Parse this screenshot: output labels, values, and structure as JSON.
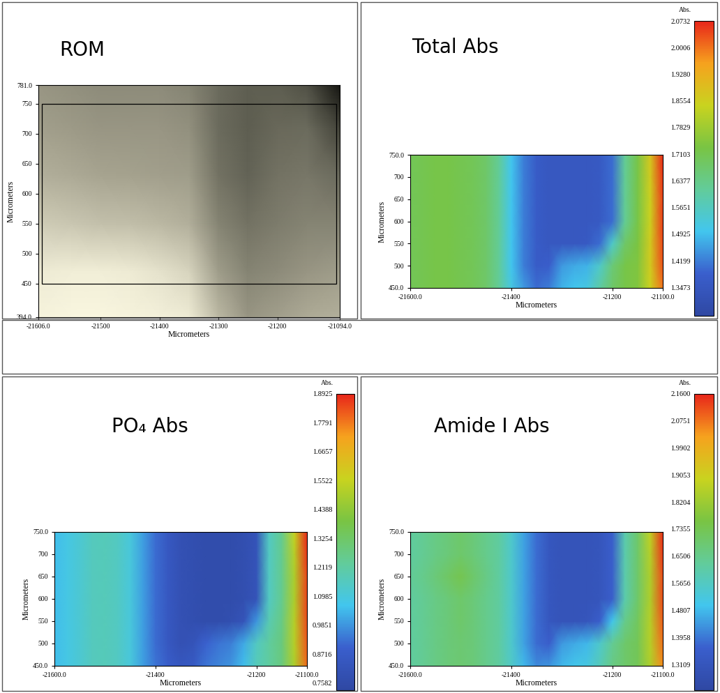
{
  "chart_data": [
    {
      "type": "image",
      "title": "ROM",
      "xlabel": "Micrometers",
      "ylabel": "Micrometers",
      "xlim": [
        -21606,
        -21094
      ],
      "ylim": [
        394,
        781
      ],
      "xticks": [
        {
          "value": -21606,
          "label": "-21606.0"
        },
        -21500,
        -21400,
        -21300,
        -21200,
        {
          "value": -21094,
          "label": "-21094.0"
        }
      ],
      "yticks": [
        {
          "value": 394,
          "label": "394.0"
        },
        450,
        500,
        550,
        600,
        650,
        700,
        750,
        {
          "value": 781,
          "label": "781.0"
        }
      ],
      "selection": {
        "x": [
          -21600,
          -21100
        ],
        "y": [
          450,
          750
        ]
      },
      "x": [
        -21606,
        -21550,
        -21500,
        -21450,
        -21400,
        -21350,
        -21300,
        -21250,
        -21200,
        -21150,
        -21094
      ],
      "y": [
        394,
        470,
        550,
        630,
        710,
        781
      ],
      "cells": [
        [
          0.96,
          0.97,
          0.97,
          0.96,
          0.95,
          0.93,
          0.75,
          0.62,
          0.66,
          0.7,
          0.72
        ],
        [
          0.93,
          0.94,
          0.94,
          0.93,
          0.9,
          0.85,
          0.65,
          0.55,
          0.58,
          0.62,
          0.65
        ],
        [
          0.82,
          0.8,
          0.78,
          0.77,
          0.75,
          0.72,
          0.55,
          0.48,
          0.52,
          0.55,
          0.55
        ],
        [
          0.72,
          0.7,
          0.68,
          0.67,
          0.66,
          0.65,
          0.48,
          0.42,
          0.48,
          0.5,
          0.45
        ],
        [
          0.66,
          0.64,
          0.62,
          0.62,
          0.62,
          0.6,
          0.45,
          0.4,
          0.44,
          0.45,
          0.3
        ],
        [
          0.62,
          0.6,
          0.58,
          0.58,
          0.58,
          0.55,
          0.45,
          0.4,
          0.4,
          0.35,
          0.12
        ]
      ]
    },
    {
      "type": "heatmap",
      "title": "Total Abs",
      "xlabel": "Micrometers",
      "ylabel": "Micrometers",
      "xlim": [
        -21600,
        -21100
      ],
      "ylim": [
        450,
        750
      ],
      "xticks": [
        {
          "value": -21600,
          "label": "-21600.0"
        },
        -21400,
        -21200,
        {
          "value": -21100,
          "label": "-21100.0"
        }
      ],
      "yticks": [
        {
          "value": 450,
          "label": "450.0"
        },
        500,
        550,
        600,
        650,
        700,
        {
          "value": 750,
          "label": "750.0"
        }
      ],
      "x": [
        -21600,
        -21575,
        -21550,
        -21525,
        -21500,
        -21475,
        -21450,
        -21425,
        -21400,
        -21375,
        -21350,
        -21325,
        -21300,
        -21275,
        -21250,
        -21225,
        -21200,
        -21175,
        -21150,
        -21125,
        -21100
      ],
      "y": [
        450,
        500,
        550,
        600,
        650,
        700,
        750
      ],
      "cells": [
        [
          1.7,
          1.71,
          1.72,
          1.72,
          1.71,
          1.7,
          1.68,
          1.62,
          1.52,
          1.45,
          1.4,
          1.42,
          1.48,
          1.5,
          1.52,
          1.6,
          1.68,
          1.72,
          1.74,
          1.85,
          2.0
        ],
        [
          1.7,
          1.71,
          1.72,
          1.72,
          1.71,
          1.7,
          1.68,
          1.62,
          1.5,
          1.42,
          1.37,
          1.38,
          1.45,
          1.47,
          1.48,
          1.55,
          1.66,
          1.72,
          1.74,
          1.86,
          2.03
        ],
        [
          1.7,
          1.71,
          1.72,
          1.72,
          1.71,
          1.7,
          1.68,
          1.62,
          1.5,
          1.42,
          1.37,
          1.35,
          1.35,
          1.35,
          1.36,
          1.4,
          1.55,
          1.68,
          1.73,
          1.86,
          2.04
        ],
        [
          1.7,
          1.71,
          1.72,
          1.72,
          1.71,
          1.7,
          1.68,
          1.62,
          1.5,
          1.42,
          1.37,
          1.35,
          1.35,
          1.35,
          1.35,
          1.36,
          1.4,
          1.62,
          1.72,
          1.85,
          2.05
        ],
        [
          1.7,
          1.71,
          1.72,
          1.72,
          1.71,
          1.7,
          1.68,
          1.62,
          1.5,
          1.42,
          1.37,
          1.35,
          1.35,
          1.35,
          1.35,
          1.36,
          1.4,
          1.62,
          1.72,
          1.85,
          2.05
        ],
        [
          1.7,
          1.71,
          1.72,
          1.72,
          1.71,
          1.7,
          1.68,
          1.62,
          1.5,
          1.42,
          1.37,
          1.35,
          1.35,
          1.35,
          1.35,
          1.36,
          1.4,
          1.62,
          1.72,
          1.86,
          2.06
        ],
        [
          1.7,
          1.71,
          1.72,
          1.72,
          1.71,
          1.7,
          1.68,
          1.62,
          1.5,
          1.42,
          1.37,
          1.35,
          1.35,
          1.35,
          1.35,
          1.36,
          1.4,
          1.62,
          1.72,
          1.87,
          2.07
        ]
      ],
      "colorbar": {
        "label": "Abs.",
        "range": [
          1.27,
          2.0732
        ],
        "ticks": [
          1.3473,
          1.4199,
          1.4925,
          1.5651,
          1.6377,
          1.7103,
          1.7829,
          1.8554,
          {
            "value": 1.928,
            "label": "1.9280"
          },
          2.0006,
          2.0732
        ]
      }
    },
    {
      "type": "heatmap",
      "title": "PO₄ Abs",
      "xlabel": "Micrometers",
      "ylabel": "Micrometers",
      "xlim": [
        -21600,
        -21100
      ],
      "ylim": [
        450,
        750
      ],
      "xticks": [
        {
          "value": -21600,
          "label": "-21600.0"
        },
        -21400,
        -21200,
        {
          "value": -21100,
          "label": "-21100.0"
        }
      ],
      "yticks": [
        {
          "value": 450,
          "label": "450.0"
        },
        500,
        550,
        600,
        650,
        700,
        {
          "value": 750,
          "label": "750.0"
        }
      ],
      "x": [
        -21600,
        -21575,
        -21550,
        -21525,
        -21500,
        -21475,
        -21450,
        -21425,
        -21400,
        -21375,
        -21350,
        -21325,
        -21300,
        -21275,
        -21250,
        -21225,
        -21200,
        -21175,
        -21150,
        -21125,
        -21100
      ],
      "y": [
        450,
        500,
        550,
        600,
        650,
        700,
        750
      ],
      "cells": [
        [
          1.05,
          1.08,
          1.12,
          1.16,
          1.17,
          1.15,
          1.1,
          1.0,
          0.93,
          0.88,
          0.84,
          0.86,
          0.93,
          0.96,
          0.98,
          1.05,
          1.17,
          1.22,
          1.28,
          1.5,
          1.8
        ],
        [
          1.05,
          1.08,
          1.12,
          1.16,
          1.17,
          1.15,
          1.1,
          1.0,
          0.92,
          0.85,
          0.8,
          0.82,
          0.9,
          0.93,
          0.95,
          1.02,
          1.15,
          1.22,
          1.28,
          1.52,
          1.82
        ],
        [
          1.05,
          1.08,
          1.12,
          1.16,
          1.17,
          1.15,
          1.1,
          1.0,
          0.92,
          0.85,
          0.8,
          0.78,
          0.77,
          0.77,
          0.78,
          0.82,
          0.98,
          1.18,
          1.27,
          1.52,
          1.84
        ],
        [
          1.05,
          1.08,
          1.12,
          1.16,
          1.17,
          1.15,
          1.1,
          1.0,
          0.92,
          0.85,
          0.8,
          0.78,
          0.77,
          0.77,
          0.77,
          0.78,
          0.82,
          1.15,
          1.25,
          1.5,
          1.85
        ],
        [
          1.05,
          1.08,
          1.12,
          1.16,
          1.17,
          1.15,
          1.1,
          1.0,
          0.92,
          0.85,
          0.8,
          0.78,
          0.77,
          0.77,
          0.77,
          0.78,
          0.82,
          1.15,
          1.25,
          1.5,
          1.85
        ],
        [
          1.05,
          1.08,
          1.12,
          1.16,
          1.17,
          1.15,
          1.1,
          1.0,
          0.92,
          0.85,
          0.8,
          0.78,
          0.77,
          0.77,
          0.77,
          0.78,
          0.82,
          1.15,
          1.25,
          1.52,
          1.87
        ],
        [
          1.05,
          1.08,
          1.12,
          1.16,
          1.17,
          1.15,
          1.1,
          1.0,
          0.92,
          0.85,
          0.8,
          0.78,
          0.77,
          0.77,
          0.77,
          0.78,
          0.82,
          1.15,
          1.25,
          1.55,
          1.89
        ]
      ],
      "colorbar": {
        "label": "Abs.",
        "range": [
          0.73,
          1.8925
        ],
        "ticks": [
          0.7582,
          0.8716,
          0.9851,
          1.0985,
          1.2119,
          1.3254,
          1.4388,
          1.5522,
          1.6657,
          1.7791,
          1.8925
        ]
      }
    },
    {
      "type": "heatmap",
      "title": "Amide I Abs",
      "xlabel": "Micrometers",
      "ylabel": "Micrometers",
      "xlim": [
        -21600,
        -21100
      ],
      "ylim": [
        450,
        750
      ],
      "xticks": [
        {
          "value": -21600,
          "label": "-21600.0"
        },
        -21400,
        -21200,
        {
          "value": -21100,
          "label": "-21100.0"
        }
      ],
      "yticks": [
        {
          "value": 450,
          "label": "450.0"
        },
        500,
        550,
        600,
        650,
        700,
        {
          "value": 750,
          "label": "750.0"
        }
      ],
      "x": [
        -21600,
        -21575,
        -21550,
        -21525,
        -21500,
        -21475,
        -21450,
        -21425,
        -21400,
        -21375,
        -21350,
        -21325,
        -21300,
        -21275,
        -21250,
        -21225,
        -21200,
        -21175,
        -21150,
        -21125,
        -21100
      ],
      "y": [
        450,
        500,
        550,
        600,
        650,
        700,
        750
      ],
      "cells": [
        [
          1.62,
          1.64,
          1.66,
          1.68,
          1.69,
          1.68,
          1.65,
          1.62,
          1.56,
          1.48,
          1.42,
          1.43,
          1.48,
          1.5,
          1.52,
          1.58,
          1.66,
          1.7,
          1.73,
          1.85,
          2.05
        ],
        [
          1.62,
          1.64,
          1.66,
          1.68,
          1.69,
          1.68,
          1.65,
          1.62,
          1.55,
          1.45,
          1.38,
          1.36,
          1.44,
          1.46,
          1.48,
          1.55,
          1.64,
          1.7,
          1.73,
          1.86,
          2.08
        ],
        [
          1.62,
          1.64,
          1.66,
          1.68,
          1.7,
          1.68,
          1.65,
          1.62,
          1.55,
          1.45,
          1.38,
          1.32,
          1.3,
          1.3,
          1.31,
          1.36,
          1.5,
          1.65,
          1.72,
          1.86,
          2.1
        ],
        [
          1.62,
          1.64,
          1.66,
          1.68,
          1.7,
          1.68,
          1.65,
          1.62,
          1.55,
          1.45,
          1.38,
          1.32,
          1.3,
          1.3,
          1.3,
          1.31,
          1.36,
          1.6,
          1.7,
          1.85,
          2.12
        ],
        [
          1.63,
          1.65,
          1.68,
          1.71,
          1.74,
          1.7,
          1.66,
          1.62,
          1.55,
          1.45,
          1.38,
          1.32,
          1.3,
          1.3,
          1.3,
          1.31,
          1.36,
          1.6,
          1.7,
          1.85,
          2.12
        ],
        [
          1.62,
          1.64,
          1.66,
          1.68,
          1.7,
          1.68,
          1.65,
          1.62,
          1.55,
          1.45,
          1.38,
          1.32,
          1.3,
          1.3,
          1.3,
          1.31,
          1.36,
          1.6,
          1.7,
          1.86,
          2.14
        ],
        [
          1.62,
          1.64,
          1.66,
          1.68,
          1.7,
          1.68,
          1.65,
          1.62,
          1.55,
          1.45,
          1.38,
          1.32,
          1.3,
          1.3,
          1.3,
          1.31,
          1.36,
          1.6,
          1.7,
          1.88,
          2.15
        ]
      ],
      "colorbar": {
        "label": "Abs.",
        "range": [
          1.23,
          2.16
        ],
        "ticks": [
          1.3109,
          1.3958,
          1.4807,
          1.5656,
          1.6506,
          1.7355,
          1.8204,
          1.9053,
          1.9902,
          2.0751,
          {
            "value": 2.16,
            "label": "2.1600"
          }
        ]
      }
    }
  ]
}
